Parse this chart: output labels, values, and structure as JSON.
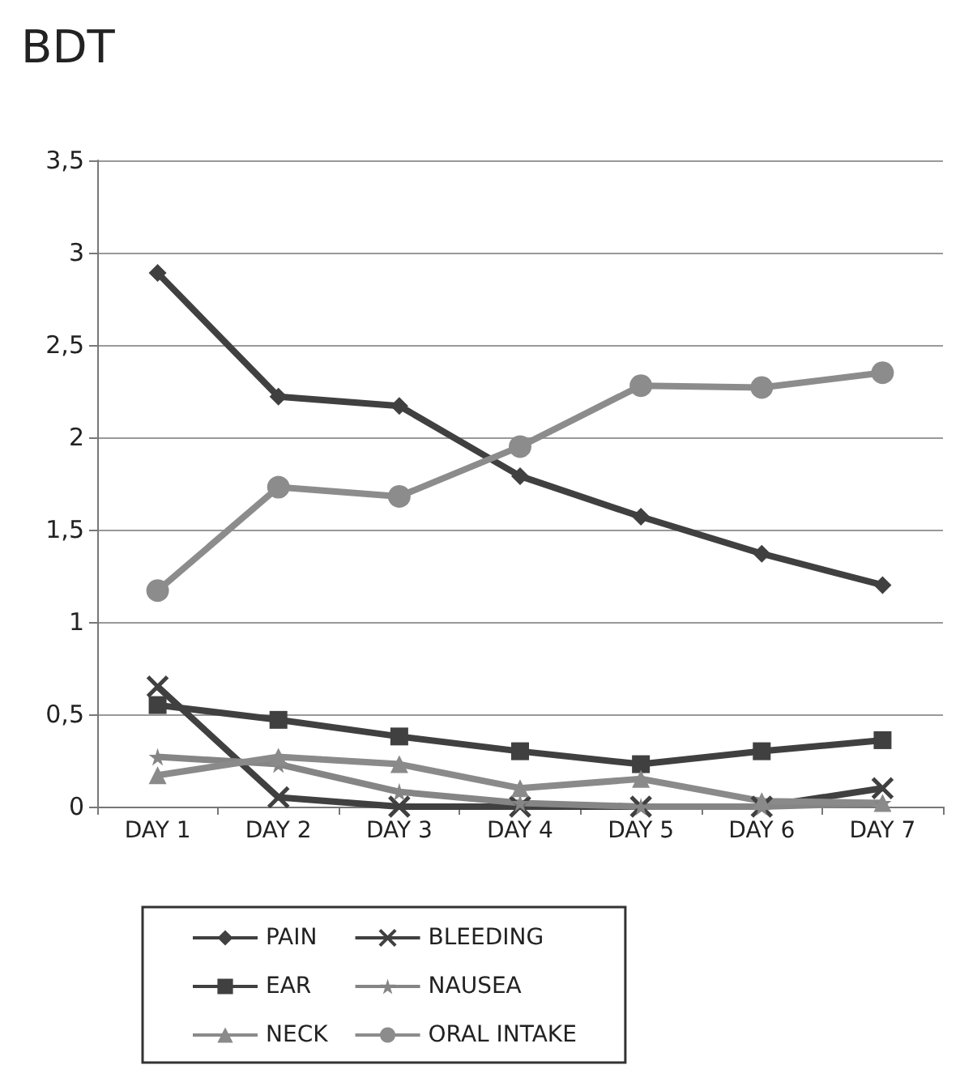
{
  "chart_data": {
    "type": "line",
    "title": "BDT",
    "categories": [
      "DAY 1",
      "DAY 2",
      "DAY 3",
      "DAY 4",
      "DAY 5",
      "DAY 6",
      "DAY 7"
    ],
    "ylim": [
      0,
      3.5
    ],
    "yticks": [
      0,
      {
        "value": 0.5,
        "label": "0,5"
      },
      1,
      {
        "value": 1.5,
        "label": "1,5"
      },
      2,
      {
        "value": 2.5,
        "label": "2,5"
      },
      3,
      {
        "value": 3.5,
        "label": "3,5"
      }
    ],
    "grid": "y",
    "legend": "bottom",
    "series": [
      {
        "name": "PAIN",
        "color": "#404040",
        "marker": "diamond",
        "values": [
          2.89,
          2.22,
          2.17,
          1.79,
          1.57,
          1.37,
          1.2
        ]
      },
      {
        "name": "BLEEDING",
        "color": "#404040",
        "marker": "cross",
        "values": [
          0.65,
          0.05,
          0,
          0,
          0,
          0,
          0.1
        ]
      },
      {
        "name": "EAR",
        "color": "#404040",
        "marker": "square",
        "values": [
          0.55,
          0.47,
          0.38,
          0.3,
          0.23,
          0.3,
          0.36
        ]
      },
      {
        "name": "NAUSEA",
        "color": "#858585",
        "marker": "star",
        "values": [
          0.27,
          0.23,
          0.08,
          0.02,
          0,
          0,
          0.02
        ]
      },
      {
        "name": "NECK",
        "color": "#8a8a8a",
        "marker": "triangle",
        "values": [
          0.17,
          0.27,
          0.23,
          0.1,
          0.15,
          0.03,
          0.02
        ]
      },
      {
        "name": "ORAL INTAKE",
        "color": "#8c8c8c",
        "marker": "circle",
        "values": [
          1.17,
          1.73,
          1.68,
          1.95,
          2.28,
          2.27,
          2.35
        ]
      }
    ]
  }
}
